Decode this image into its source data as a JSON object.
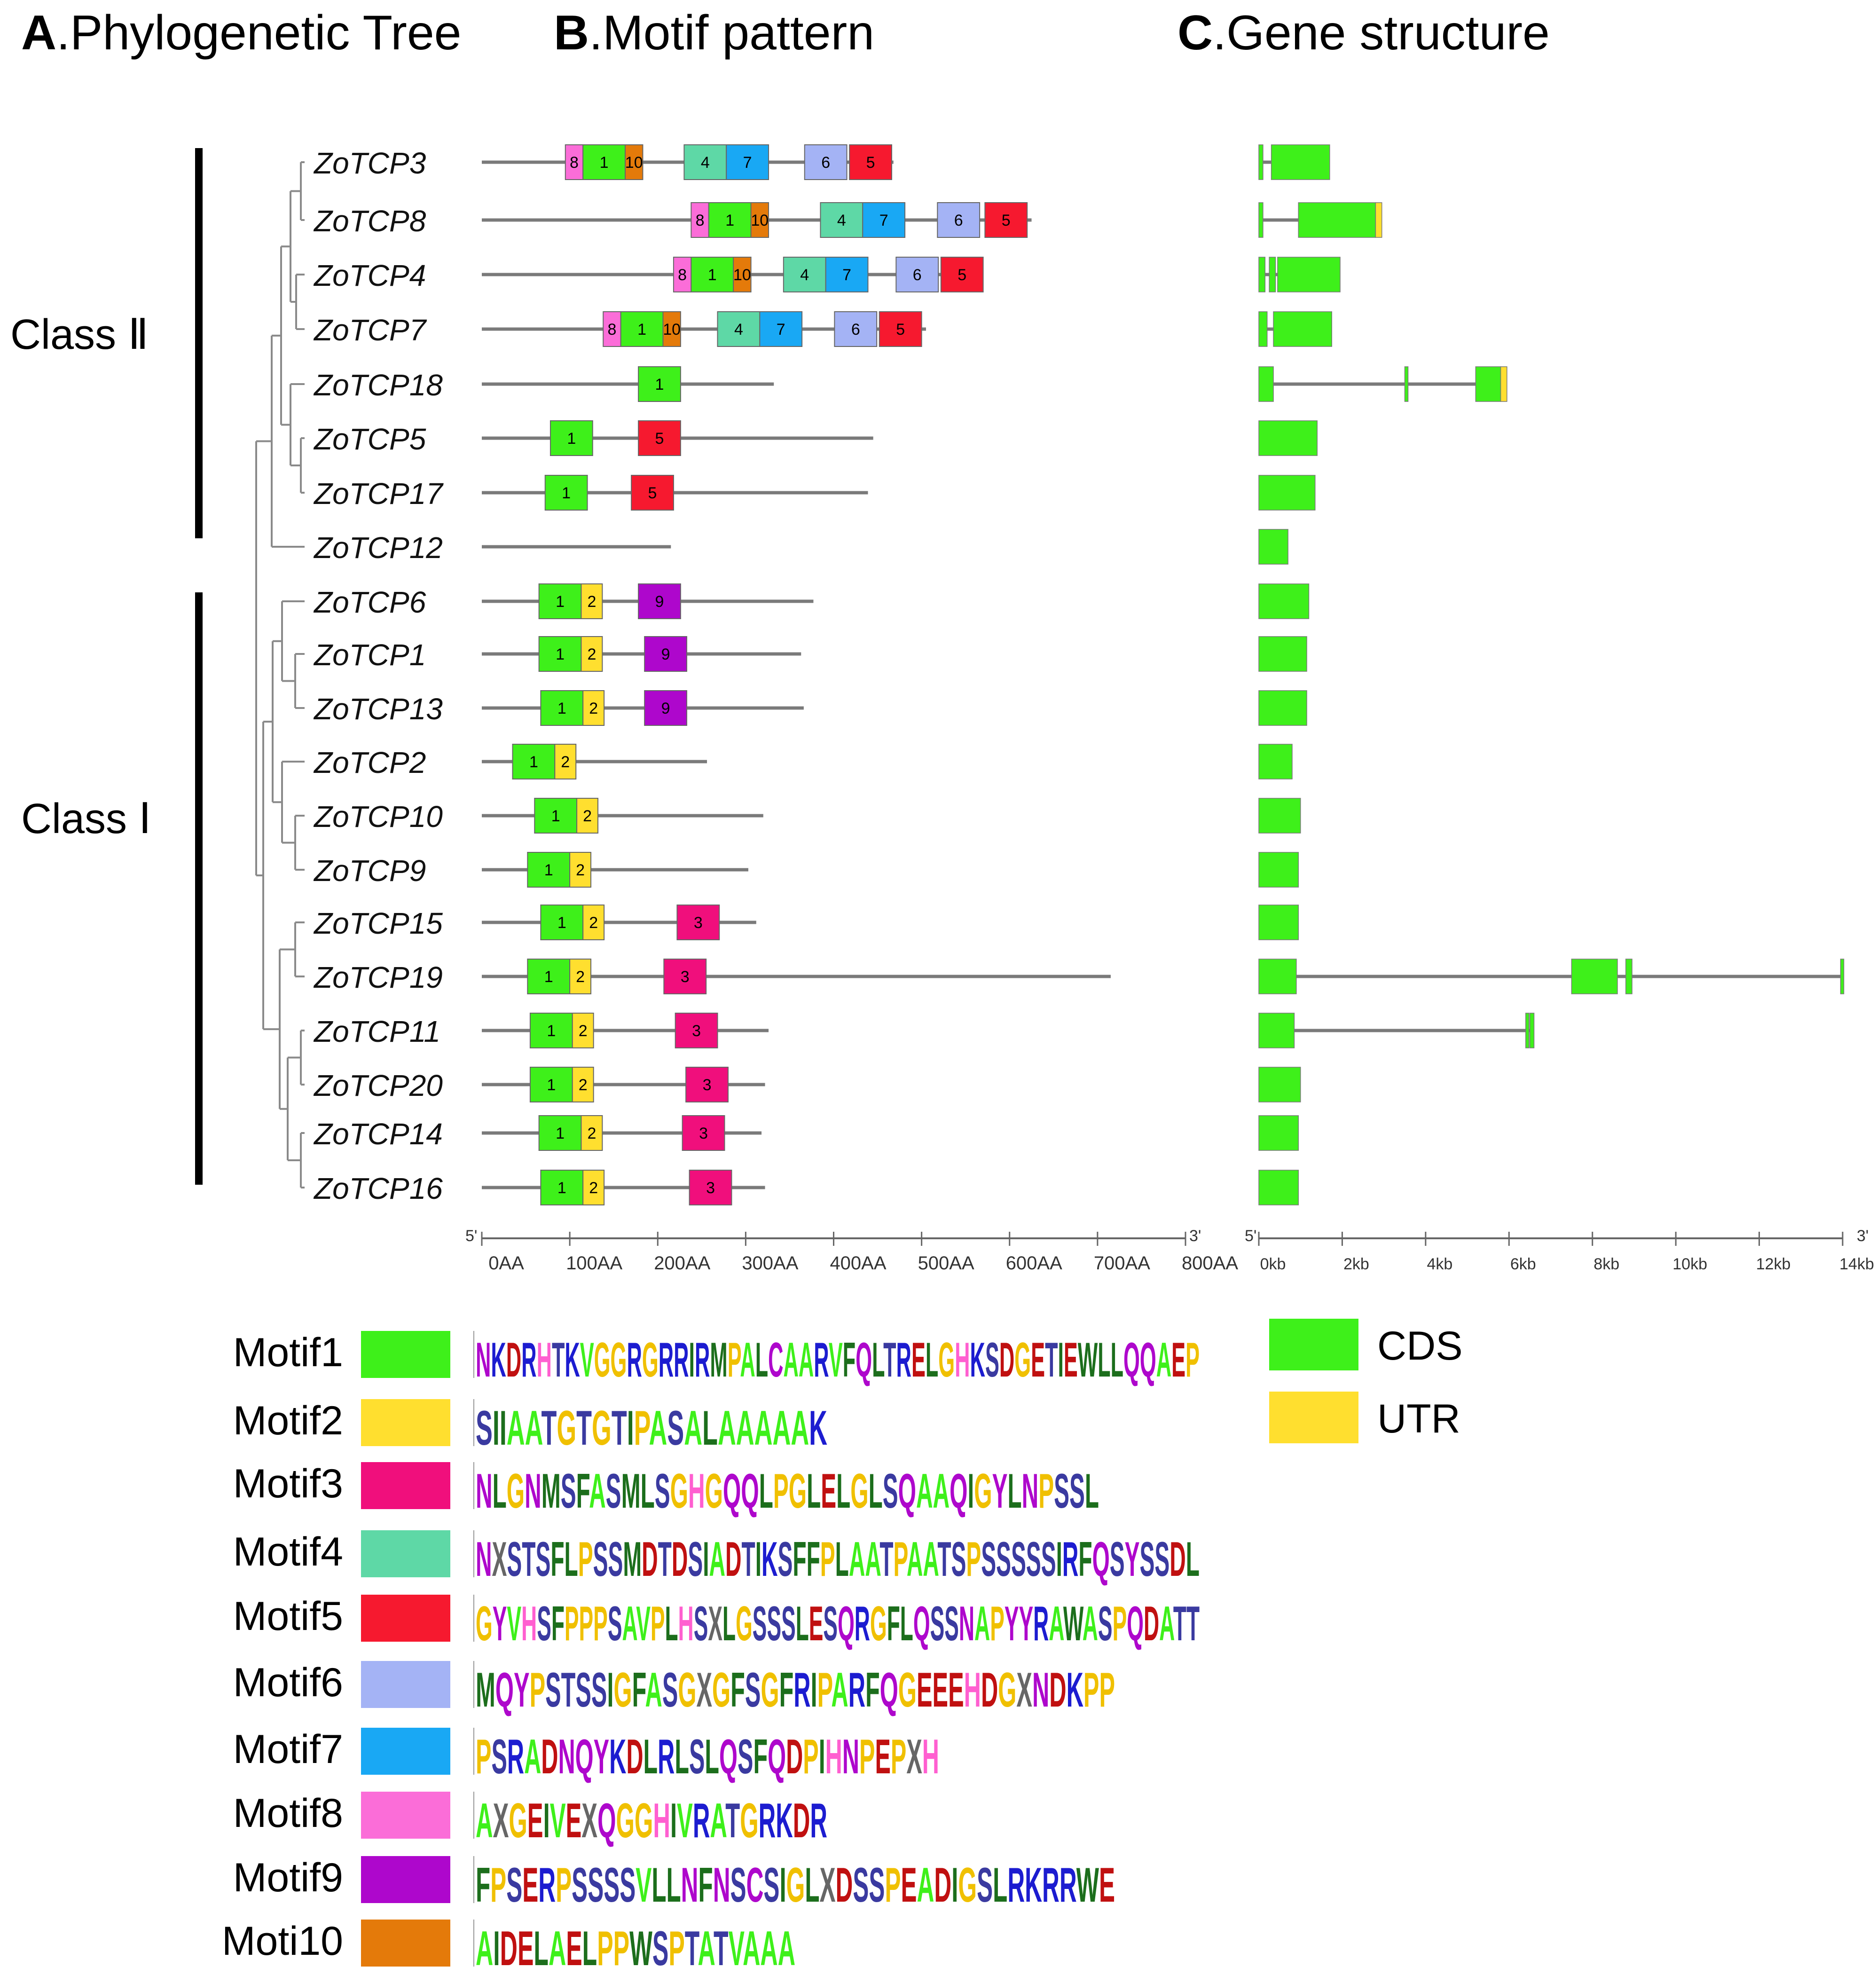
{
  "panels": {
    "a": {
      "letter": "A",
      "title": ".Phylogenetic Tree"
    },
    "b": {
      "letter": "B",
      "title": ".Motif pattern"
    },
    "c": {
      "letter": "C",
      "title": ".Gene structure"
    }
  },
  "classes": [
    {
      "label": "Class Ⅱ"
    },
    {
      "label": "Class Ⅰ"
    }
  ],
  "motif_colors": {
    "1": "#3ef01a",
    "2": "#ffdf2f",
    "3": "#f00f7c",
    "4": "#5ed8a6",
    "5": "#f6192f",
    "6": "#a4b3f5",
    "7": "#19a8f4",
    "8": "#fb6dd8",
    "9": "#ae07cc",
    "10": "#e47a0a"
  },
  "genes": [
    {
      "name": "ZoTCP3",
      "length": 468,
      "motifs": [
        {
          "id": 8,
          "start": 95
        },
        {
          "id": 1,
          "start": 115
        },
        {
          "id": 10,
          "start": 163
        },
        {
          "id": 4,
          "start": 230
        },
        {
          "id": 7,
          "start": 278
        },
        {
          "id": 6,
          "start": 367
        },
        {
          "id": 5,
          "start": 418
        }
      ]
    },
    {
      "name": "ZoTCP8",
      "length": 625,
      "motifs": [
        {
          "id": 8,
          "start": 238
        },
        {
          "id": 1,
          "start": 258
        },
        {
          "id": 10,
          "start": 306
        },
        {
          "id": 4,
          "start": 385
        },
        {
          "id": 7,
          "start": 433
        },
        {
          "id": 6,
          "start": 518
        },
        {
          "id": 5,
          "start": 572
        }
      ]
    },
    {
      "name": "ZoTCP4",
      "length": 567,
      "motifs": [
        {
          "id": 8,
          "start": 218
        },
        {
          "id": 1,
          "start": 238
        },
        {
          "id": 10,
          "start": 286
        },
        {
          "id": 4,
          "start": 343
        },
        {
          "id": 7,
          "start": 391
        },
        {
          "id": 6,
          "start": 471
        },
        {
          "id": 5,
          "start": 522
        }
      ]
    },
    {
      "name": "ZoTCP7",
      "length": 505,
      "motifs": [
        {
          "id": 8,
          "start": 138
        },
        {
          "id": 1,
          "start": 158
        },
        {
          "id": 10,
          "start": 206
        },
        {
          "id": 4,
          "start": 268
        },
        {
          "id": 7,
          "start": 316
        },
        {
          "id": 6,
          "start": 401
        },
        {
          "id": 5,
          "start": 452
        }
      ]
    },
    {
      "name": "ZoTCP18",
      "length": 332,
      "motifs": [
        {
          "id": 1,
          "start": 178
        }
      ]
    },
    {
      "name": "ZoTCP5",
      "length": 445,
      "motifs": [
        {
          "id": 1,
          "start": 78
        },
        {
          "id": 5,
          "start": 178
        }
      ]
    },
    {
      "name": "ZoTCP17",
      "length": 439,
      "motifs": [
        {
          "id": 1,
          "start": 72
        },
        {
          "id": 5,
          "start": 170
        }
      ]
    },
    {
      "name": "ZoTCP12",
      "length": 215,
      "motifs": []
    },
    {
      "name": "ZoTCP6",
      "length": 377,
      "motifs": [
        {
          "id": 1,
          "start": 65
        },
        {
          "id": 2,
          "start": 113
        },
        {
          "id": 9,
          "start": 178
        }
      ]
    },
    {
      "name": "ZoTCP1",
      "length": 363,
      "motifs": [
        {
          "id": 1,
          "start": 65
        },
        {
          "id": 2,
          "start": 113
        },
        {
          "id": 9,
          "start": 185
        }
      ]
    },
    {
      "name": "ZoTCP13",
      "length": 366,
      "motifs": [
        {
          "id": 1,
          "start": 67
        },
        {
          "id": 2,
          "start": 115
        },
        {
          "id": 9,
          "start": 185
        }
      ]
    },
    {
      "name": "ZoTCP2",
      "length": 256,
      "motifs": [
        {
          "id": 1,
          "start": 35
        },
        {
          "id": 2,
          "start": 83
        }
      ]
    },
    {
      "name": "ZoTCP10",
      "length": 320,
      "motifs": [
        {
          "id": 1,
          "start": 60
        },
        {
          "id": 2,
          "start": 108
        }
      ]
    },
    {
      "name": "ZoTCP9",
      "length": 303,
      "motifs": [
        {
          "id": 1,
          "start": 52
        },
        {
          "id": 2,
          "start": 100
        }
      ]
    },
    {
      "name": "ZoTCP15",
      "length": 312,
      "motifs": [
        {
          "id": 1,
          "start": 67
        },
        {
          "id": 2,
          "start": 115
        },
        {
          "id": 3,
          "start": 222
        }
      ]
    },
    {
      "name": "ZoTCP19",
      "length": 715,
      "motifs": [
        {
          "id": 1,
          "start": 52
        },
        {
          "id": 2,
          "start": 100
        },
        {
          "id": 3,
          "start": 207
        }
      ]
    },
    {
      "name": "ZoTCP11",
      "length": 326,
      "motifs": [
        {
          "id": 1,
          "start": 55
        },
        {
          "id": 2,
          "start": 103
        },
        {
          "id": 3,
          "start": 220
        }
      ]
    },
    {
      "name": "ZoTCP20",
      "length": 322,
      "motifs": [
        {
          "id": 1,
          "start": 55
        },
        {
          "id": 2,
          "start": 103
        },
        {
          "id": 3,
          "start": 232
        }
      ]
    },
    {
      "name": "ZoTCP14",
      "length": 318,
      "motifs": [
        {
          "id": 1,
          "start": 65
        },
        {
          "id": 2,
          "start": 113
        },
        {
          "id": 3,
          "start": 228
        }
      ]
    },
    {
      "name": "ZoTCP16",
      "length": 322,
      "motifs": [
        {
          "id": 1,
          "start": 67
        },
        {
          "id": 2,
          "start": 115
        },
        {
          "id": 3,
          "start": 236
        }
      ]
    }
  ],
  "gene_structures": [
    {
      "gene": "ZoTCP3",
      "length_kb": 1.7,
      "features": [
        {
          "type": "CDS",
          "start": 0,
          "end": 0.1
        },
        {
          "type": "CDS",
          "start": 0.3,
          "end": 1.7
        }
      ]
    },
    {
      "gene": "ZoTCP8",
      "length_kb": 2.95,
      "features": [
        {
          "type": "CDS",
          "start": 0,
          "end": 0.1
        },
        {
          "type": "CDS",
          "start": 0.95,
          "end": 2.8
        },
        {
          "type": "UTR",
          "start": 2.8,
          "end": 2.95
        }
      ]
    },
    {
      "gene": "ZoTCP4",
      "length_kb": 1.95,
      "features": [
        {
          "type": "CDS",
          "start": 0,
          "end": 0.15
        },
        {
          "type": "CDS",
          "start": 0.25,
          "end": 0.4
        },
        {
          "type": "CDS",
          "start": 0.45,
          "end": 1.95
        }
      ]
    },
    {
      "gene": "ZoTCP7",
      "length_kb": 1.75,
      "features": [
        {
          "type": "CDS",
          "start": 0,
          "end": 0.2
        },
        {
          "type": "CDS",
          "start": 0.35,
          "end": 1.75
        }
      ]
    },
    {
      "gene": "ZoTCP18",
      "length_kb": 5.95,
      "features": [
        {
          "type": "CDS",
          "start": 0,
          "end": 0.35
        },
        {
          "type": "CDS",
          "start": 3.5,
          "end": 3.55
        },
        {
          "type": "CDS",
          "start": 5.2,
          "end": 5.8
        },
        {
          "type": "UTR",
          "start": 5.8,
          "end": 5.95
        }
      ]
    },
    {
      "gene": "ZoTCP5",
      "length_kb": 1.4,
      "features": [
        {
          "type": "CDS",
          "start": 0,
          "end": 1.4
        }
      ]
    },
    {
      "gene": "ZoTCP17",
      "length_kb": 1.35,
      "features": [
        {
          "type": "CDS",
          "start": 0,
          "end": 1.35
        }
      ]
    },
    {
      "gene": "ZoTCP12",
      "length_kb": 0.7,
      "features": [
        {
          "type": "CDS",
          "start": 0,
          "end": 0.7
        }
      ]
    },
    {
      "gene": "ZoTCP6",
      "length_kb": 1.2,
      "features": [
        {
          "type": "CDS",
          "start": 0,
          "end": 1.2
        }
      ]
    },
    {
      "gene": "ZoTCP1",
      "length_kb": 1.15,
      "features": [
        {
          "type": "CDS",
          "start": 0,
          "end": 1.15
        }
      ]
    },
    {
      "gene": "ZoTCP13",
      "length_kb": 1.15,
      "features": [
        {
          "type": "CDS",
          "start": 0,
          "end": 1.15
        }
      ]
    },
    {
      "gene": "ZoTCP2",
      "length_kb": 0.8,
      "features": [
        {
          "type": "CDS",
          "start": 0,
          "end": 0.8
        }
      ]
    },
    {
      "gene": "ZoTCP10",
      "length_kb": 1.0,
      "features": [
        {
          "type": "CDS",
          "start": 0,
          "end": 1.0
        }
      ]
    },
    {
      "gene": "ZoTCP9",
      "length_kb": 0.95,
      "features": [
        {
          "type": "CDS",
          "start": 0,
          "end": 0.95
        }
      ]
    },
    {
      "gene": "ZoTCP15",
      "length_kb": 0.95,
      "features": [
        {
          "type": "CDS",
          "start": 0,
          "end": 0.95
        }
      ]
    },
    {
      "gene": "ZoTCP19",
      "length_kb": 14.0,
      "features": [
        {
          "type": "CDS",
          "start": 0,
          "end": 0.9
        },
        {
          "type": "CDS",
          "start": 7.5,
          "end": 8.6
        },
        {
          "type": "CDS",
          "start": 8.8,
          "end": 8.95
        },
        {
          "type": "CDS",
          "start": 13.95,
          "end": 14.0
        }
      ]
    },
    {
      "gene": "ZoTCP11",
      "length_kb": 6.6,
      "features": [
        {
          "type": "CDS",
          "start": 0,
          "end": 0.85
        },
        {
          "type": "CDS",
          "start": 6.4,
          "end": 6.45
        },
        {
          "type": "CDS",
          "start": 6.5,
          "end": 6.6
        }
      ]
    },
    {
      "gene": "ZoTCP20",
      "length_kb": 1.0,
      "features": [
        {
          "type": "CDS",
          "start": 0,
          "end": 1.0
        }
      ]
    },
    {
      "gene": "ZoTCP14",
      "length_kb": 0.95,
      "features": [
        {
          "type": "CDS",
          "start": 0,
          "end": 0.95
        }
      ]
    },
    {
      "gene": "ZoTCP16",
      "length_kb": 0.95,
      "features": [
        {
          "type": "CDS",
          "start": 0,
          "end": 0.95
        }
      ]
    }
  ],
  "axes": {
    "motif": {
      "prime5": "5'",
      "prime3": "3'",
      "ticks": [
        "0AA",
        "100AA",
        "200AA",
        "300AA",
        "400AA",
        "500AA",
        "600AA",
        "700AA",
        "800AA"
      ],
      "max": 800
    },
    "gene": {
      "prime5": "5'",
      "prime3": "3'",
      "ticks": [
        "0kb",
        "2kb",
        "4kb",
        "6kb",
        "8kb",
        "10kb",
        "12kb",
        "14kb"
      ],
      "max": 14
    }
  },
  "motif_legend": [
    {
      "label": "Motif1",
      "id": 1,
      "sequence": "NKDRHTKVGGRGRRIRMPALCAARVFQLTRELGHKSDGETIEWLLQQAEP"
    },
    {
      "label": "Motif2",
      "id": 2,
      "sequence": "SIIAATGTGTIPASALAAAAAK"
    },
    {
      "label": "Motif3",
      "id": 3,
      "sequence": "NLGNMSFASMLSGHGQQLPGLELGLSQAAQIGYLNPSSL"
    },
    {
      "label": "Motif4",
      "id": 4,
      "sequence": "NXSTSFLPSSMDTDSIADTIKSFFPLAATPAATSPSSSSSIRFQSYSSDL"
    },
    {
      "label": "Motif5",
      "id": 5,
      "sequence": "GYVHSFPPPSAVPLHSXLGSSSLESQRGFLQSSNAPYYRAWASPQDATT"
    },
    {
      "label": "Motif6",
      "id": 6,
      "sequence": "MQYPSTSSIGFASGXGFSGFRIPARFQGEEEHDGXNDKPP"
    },
    {
      "label": "Motif7",
      "id": 7,
      "sequence": "PSRADNQYKDLRLSLQSFQDPIHNPEPXH"
    },
    {
      "label": "Motif8",
      "id": 8,
      "sequence": "AXGEIVEXQGGHIVRATGRKDR"
    },
    {
      "label": "Motif9",
      "id": 9,
      "sequence": "FPSERPSSSSVLLNFNSCSIGLXDSSPEADIGSLRKRRWE"
    },
    {
      "label": "Moti10",
      "id": 10,
      "sequence": "AIDELAELPPWSPTATVAAA"
    }
  ],
  "structure_legend": [
    {
      "label": "CDS",
      "color": "#3ef01a"
    },
    {
      "label": "UTR",
      "color": "#ffdf2f"
    }
  ]
}
